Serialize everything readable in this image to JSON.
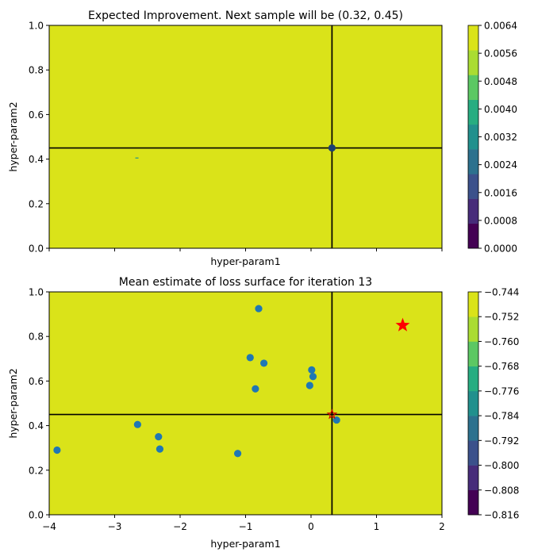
{
  "chart_data": [
    {
      "type": "contour",
      "title": "Expected Improvement. Next sample will be (0.32, 0.45)",
      "xlabel": "hyper-param1",
      "ylabel": "hyper-param2",
      "xlim": [
        -4,
        2
      ],
      "ylim": [
        0,
        1
      ],
      "x_ticks": [],
      "y_ticks": [
        "0.0",
        "0.2",
        "0.4",
        "0.6",
        "0.8",
        "1.0"
      ],
      "fill_level": "0.0064",
      "next_sample": {
        "x": 0.32,
        "y": 0.45
      },
      "colorbar": {
        "levels": [
          "0.0000",
          "0.0008",
          "0.0016",
          "0.0024",
          "0.0032",
          "0.0040",
          "0.0048",
          "0.0056",
          "0.0064"
        ],
        "colors": [
          "#440154",
          "#472c7a",
          "#3b518b",
          "#2c718e",
          "#21908d",
          "#27ad81",
          "#5cc863",
          "#aadc32",
          "#dae319"
        ]
      }
    },
    {
      "type": "contour",
      "title": "Mean estimate of loss surface for iteration 13",
      "xlabel": "hyper-param1",
      "ylabel": "hyper-param2",
      "xlim": [
        -4,
        2
      ],
      "ylim": [
        0,
        1
      ],
      "x_ticks": [
        "−4",
        "−3",
        "−2",
        "−1",
        "0",
        "1",
        "2"
      ],
      "y_ticks": [
        "0.0",
        "0.2",
        "0.4",
        "0.6",
        "0.8",
        "1.0"
      ],
      "next_sample": {
        "x": 0.32,
        "y": 0.45
      },
      "best_point": {
        "x": 1.4,
        "y": 0.85
      },
      "samples": [
        {
          "x": -3.88,
          "y": 0.29
        },
        {
          "x": -2.65,
          "y": 0.405
        },
        {
          "x": -2.33,
          "y": 0.35
        },
        {
          "x": -2.31,
          "y": 0.295
        },
        {
          "x": -1.12,
          "y": 0.275
        },
        {
          "x": -0.93,
          "y": 0.705
        },
        {
          "x": -0.85,
          "y": 0.565
        },
        {
          "x": -0.8,
          "y": 0.925
        },
        {
          "x": -0.72,
          "y": 0.68
        },
        {
          "x": -0.02,
          "y": 0.58
        },
        {
          "x": 0.01,
          "y": 0.65
        },
        {
          "x": 0.03,
          "y": 0.62
        },
        {
          "x": 0.39,
          "y": 0.425
        }
      ],
      "colorbar": {
        "levels": [
          "−0.816",
          "−0.808",
          "−0.800",
          "−0.792",
          "−0.784",
          "−0.776",
          "−0.768",
          "−0.760",
          "−0.752",
          "−0.744"
        ],
        "colors": [
          "#440154",
          "#472c7a",
          "#3b518b",
          "#2c718e",
          "#21908d",
          "#27ad81",
          "#5cc863",
          "#aadc32",
          "#dae319"
        ]
      }
    }
  ]
}
